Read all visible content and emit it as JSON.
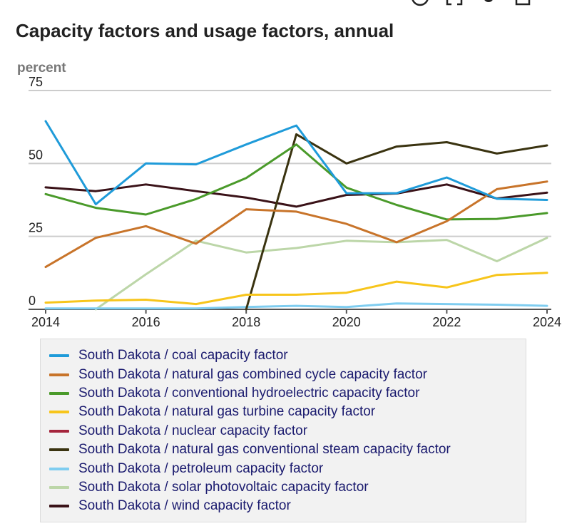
{
  "toolbar": {
    "icons": [
      "info-icon",
      "fullscreen-icon",
      "gear-icon",
      "download-icon",
      "menu-icon"
    ]
  },
  "chart_data": {
    "type": "line",
    "title": "Capacity factors and usage factors, annual",
    "ylabel": "percent",
    "xlabel": "",
    "x": [
      2014,
      2015,
      2016,
      2017,
      2018,
      2019,
      2020,
      2021,
      2022,
      2023,
      2024
    ],
    "xticks": [
      "2014",
      "2016",
      "2018",
      "2020",
      "2022",
      "2024"
    ],
    "yticks": [
      "0",
      "25",
      "50",
      "75"
    ],
    "xlim": [
      2014,
      2024
    ],
    "ylim": [
      0,
      75
    ],
    "grid": true,
    "legend_position": "bottom",
    "series": [
      {
        "name": "South Dakota / coal capacity factor",
        "color": "#1f9bd9",
        "values": [
          64.5,
          36.0,
          50.0,
          49.7,
          56.5,
          63.0,
          39.8,
          39.8,
          45.2,
          37.9,
          37.5
        ]
      },
      {
        "name": "South Dakota / natural gas combined cycle capacity factor",
        "color": "#c8742a",
        "values": [
          14.5,
          24.5,
          28.5,
          22.5,
          34.3,
          33.5,
          29.3,
          23.0,
          30.2,
          41.2,
          43.8
        ]
      },
      {
        "name": "South Dakota / conventional hydroelectric capacity factor",
        "color": "#4a9a2a",
        "values": [
          39.5,
          34.8,
          32.5,
          37.8,
          45.0,
          56.5,
          41.7,
          35.8,
          30.8,
          31.0,
          33.0
        ]
      },
      {
        "name": "South Dakota / natural gas turbine capacity factor",
        "color": "#f7c51b",
        "values": [
          2.3,
          3.0,
          3.3,
          1.8,
          5.0,
          5.0,
          5.7,
          9.5,
          7.5,
          11.8,
          12.5
        ]
      },
      {
        "name": "South Dakota / nuclear capacity factor",
        "color": "#a4243c",
        "values": [
          null,
          null,
          null,
          null,
          null,
          null,
          null,
          null,
          null,
          null,
          null
        ]
      },
      {
        "name": "South Dakota / natural gas conventional steam capacity factor",
        "color": "#3a3310",
        "values": [
          null,
          null,
          null,
          null,
          0.0,
          60.0,
          50.0,
          55.8,
          57.3,
          53.4,
          56.2
        ]
      },
      {
        "name": "South Dakota / petroleum capacity factor",
        "color": "#7fcdf0",
        "values": [
          0.3,
          0.3,
          0.3,
          0.3,
          0.8,
          1.2,
          0.8,
          2.0,
          1.8,
          1.6,
          1.2
        ]
      },
      {
        "name": "South Dakota / solar photovoltaic capacity factor",
        "color": "#bcd6a8",
        "values": [
          null,
          0.0,
          12.0,
          23.5,
          19.5,
          21.0,
          23.5,
          23.0,
          23.8,
          16.5,
          24.5
        ]
      },
      {
        "name": "South Dakota / wind capacity factor",
        "color": "#3a1218",
        "values": [
          41.8,
          40.5,
          42.8,
          40.5,
          38.3,
          35.2,
          39.2,
          39.7,
          42.8,
          38.0,
          40.0
        ]
      }
    ]
  }
}
